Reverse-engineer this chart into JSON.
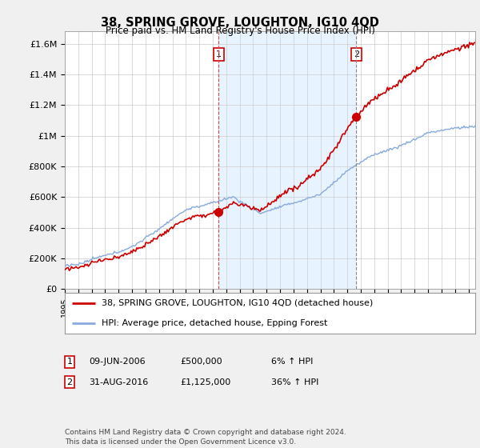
{
  "title": "38, SPRING GROVE, LOUGHTON, IG10 4QD",
  "subtitle": "Price paid vs. HM Land Registry's House Price Index (HPI)",
  "ylabel_ticks": [
    "£0",
    "£200K",
    "£400K",
    "£600K",
    "£800K",
    "£1M",
    "£1.2M",
    "£1.4M",
    "£1.6M"
  ],
  "ytick_values": [
    0,
    200000,
    400000,
    600000,
    800000,
    1000000,
    1200000,
    1400000,
    1600000
  ],
  "ylim": [
    0,
    1680000
  ],
  "xlim_start": 1995.0,
  "xlim_end": 2025.5,
  "sale1": {
    "date_num": 2006.44,
    "price": 500000,
    "label": "1",
    "date_str": "09-JUN-2006",
    "hpi_pct": "6% ↑ HPI"
  },
  "sale2": {
    "date_num": 2016.66,
    "price": 1125000,
    "label": "2",
    "date_str": "31-AUG-2016",
    "hpi_pct": "36% ↑ HPI"
  },
  "vline1_color": "#dd4444",
  "vline1_style": "--",
  "vline2_color": "#888888",
  "vline2_style": "--",
  "shade_color": "#ddeeff",
  "property_line_color": "#cc0000",
  "hpi_line_color": "#88aadd",
  "legend_label_property": "38, SPRING GROVE, LOUGHTON, IG10 4QD (detached house)",
  "legend_label_hpi": "HPI: Average price, detached house, Epping Forest",
  "footer": "Contains HM Land Registry data © Crown copyright and database right 2024.\nThis data is licensed under the Open Government Licence v3.0.",
  "table_rows": [
    {
      "num": "1",
      "date": "09-JUN-2006",
      "price": "£500,000",
      "hpi": "6% ↑ HPI"
    },
    {
      "num": "2",
      "date": "31-AUG-2016",
      "price": "£1,125,000",
      "hpi": "36% ↑ HPI"
    }
  ],
  "background_color": "#f0f0f0",
  "plot_bg_color": "#ffffff",
  "grid_color": "#cccccc"
}
